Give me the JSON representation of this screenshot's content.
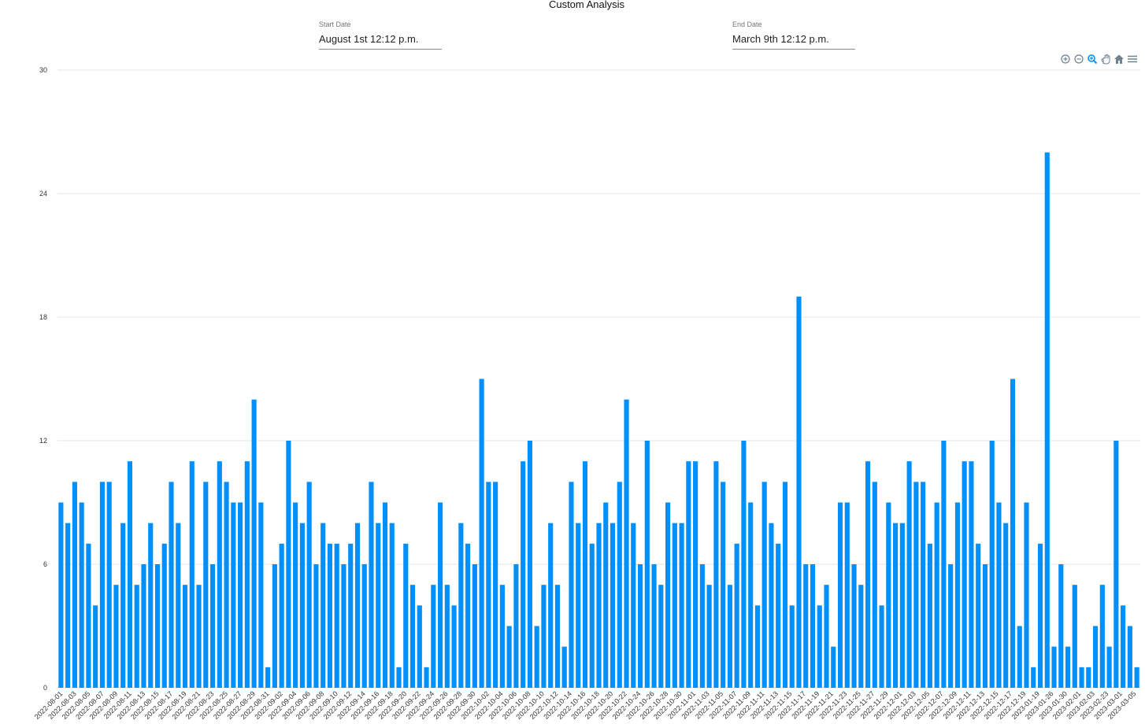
{
  "header": {
    "title": "Custom Analysis",
    "start_label": "Start Date",
    "start_value": "August 1st 12:12 p.m.",
    "end_label": "End Date",
    "end_value": "March 9th 12:12 p.m."
  },
  "toolbar": [
    "zoom-in-icon",
    "zoom-out-icon",
    "selection-zoom-icon",
    "pan-icon",
    "reset-home-icon",
    "menu-icon"
  ],
  "colors": {
    "bar": "#008ffb",
    "grid": "#e6e6e6",
    "toolbar": "#6e8192",
    "toolbar_active": "#008ffb"
  },
  "chart_data": {
    "type": "bar",
    "ylim": [
      0,
      30
    ],
    "yticks": [
      0,
      6,
      12,
      18,
      24,
      30
    ],
    "grid": true,
    "xlabels": [
      "2022-08-01",
      "2022-08-03",
      "2022-08-05",
      "2022-08-07",
      "2022-08-09",
      "2022-08-11",
      "2022-08-13",
      "2022-08-15",
      "2022-08-17",
      "2022-08-19",
      "2022-08-21",
      "2022-08-23",
      "2022-08-25",
      "2022-08-27",
      "2022-08-29",
      "2022-08-31",
      "2022-09-02",
      "2022-09-04",
      "2022-09-06",
      "2022-09-08",
      "2022-09-10",
      "2022-09-12",
      "2022-09-14",
      "2022-09-16",
      "2022-09-18",
      "2022-09-20",
      "2022-09-22",
      "2022-09-24",
      "2022-09-26",
      "2022-09-28",
      "2022-09-30",
      "2022-10-02",
      "2022-10-04",
      "2022-10-06",
      "2022-10-08",
      "2022-10-10",
      "2022-10-12",
      "2022-10-14",
      "2022-10-16",
      "2022-10-18",
      "2022-10-20",
      "2022-10-22",
      "2022-10-24",
      "2022-10-26",
      "2022-10-28",
      "2022-10-30",
      "2022-11-01",
      "2022-11-03",
      "2022-11-05",
      "2022-11-07",
      "2022-11-09",
      "2022-11-11",
      "2022-11-13",
      "2022-11-15",
      "2022-11-17",
      "2022-11-19",
      "2022-11-21",
      "2022-11-23",
      "2022-11-25",
      "2022-11-27",
      "2022-11-29",
      "2022-12-01",
      "2022-12-03",
      "2022-12-05",
      "2022-12-07",
      "2022-12-09",
      "2022-12-11",
      "2022-12-13",
      "2022-12-15",
      "2022-12-17",
      "2022-12-19",
      "2023-01-19",
      "2023-01-26",
      "2023-01-30",
      "2023-02-01",
      "2023-02-03",
      "2023-02-23",
      "2023-03-01",
      "2023-03-05"
    ],
    "values": [
      9,
      8,
      10,
      9,
      7,
      4,
      10,
      10,
      5,
      8,
      11,
      5,
      6,
      8,
      6,
      7,
      10,
      8,
      5,
      11,
      5,
      10,
      6,
      11,
      10,
      9,
      9,
      11,
      14,
      9,
      1,
      6,
      7,
      12,
      9,
      8,
      10,
      6,
      8,
      7,
      7,
      6,
      7,
      8,
      6,
      10,
      8,
      9,
      8,
      1,
      7,
      5,
      4,
      1,
      5,
      9,
      5,
      4,
      8,
      7,
      6,
      15,
      10,
      10,
      5,
      3,
      6,
      11,
      12,
      3,
      5,
      8,
      5,
      2,
      10,
      8,
      11,
      7,
      8,
      9,
      8,
      10,
      14,
      8,
      6,
      12,
      6,
      5,
      9,
      8,
      8,
      11,
      11,
      6,
      5,
      11,
      10,
      5,
      7,
      12,
      9,
      4,
      10,
      8,
      7,
      10,
      4,
      19,
      6,
      6,
      4,
      5,
      2,
      9,
      9,
      6,
      5,
      11,
      10,
      4,
      9,
      8,
      8,
      11,
      10,
      10,
      7,
      9,
      12,
      6,
      9,
      11,
      11,
      7,
      6,
      12,
      9,
      8,
      15,
      3,
      9,
      1,
      7,
      26,
      2,
      6,
      2,
      5,
      1,
      1,
      3,
      5,
      2,
      12,
      4,
      3,
      1
    ]
  }
}
